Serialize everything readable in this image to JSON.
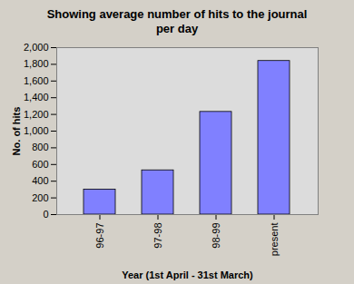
{
  "chart_data": {
    "type": "bar",
    "title": "Showing average number of hits to the journal per day",
    "x_label": "Year (1st April - 31st March)",
    "y_label": "No. of hits",
    "categories": [
      "96-97",
      "97-98",
      "98-99",
      "present"
    ],
    "values": [
      300,
      530,
      1230,
      1840
    ],
    "color": "#8080ff",
    "ylim": [
      0,
      2000
    ],
    "yticks": [
      0,
      200,
      400,
      600,
      800,
      1000,
      1200,
      1400,
      1600,
      1800,
      2000
    ],
    "grid": false
  }
}
